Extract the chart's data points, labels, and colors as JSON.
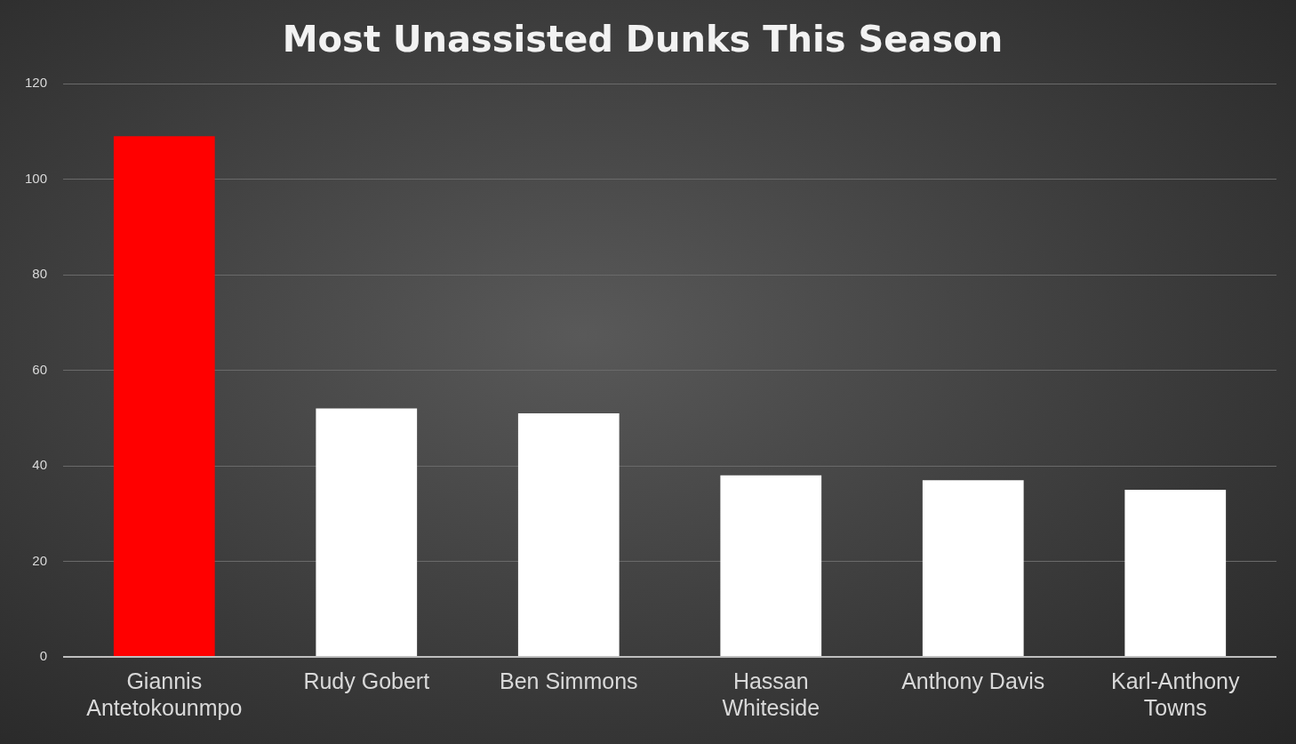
{
  "chart_data": {
    "type": "bar",
    "title": "Most Unassisted Dunks This Season",
    "categories": [
      "Giannis Antetokounmpo",
      "Rudy Gobert",
      "Ben Simmons",
      "Hassan Whiteside",
      "Anthony Davis",
      "Karl-Anthony Towns"
    ],
    "values": [
      109,
      52,
      51,
      38,
      37,
      35
    ],
    "colors": [
      "#ff0000",
      "#ffffff",
      "#ffffff",
      "#ffffff",
      "#ffffff",
      "#ffffff"
    ],
    "ylim": [
      0,
      120
    ],
    "yticks": [
      0,
      20,
      40,
      60,
      80,
      100,
      120
    ],
    "grid": "y",
    "legend": false
  }
}
